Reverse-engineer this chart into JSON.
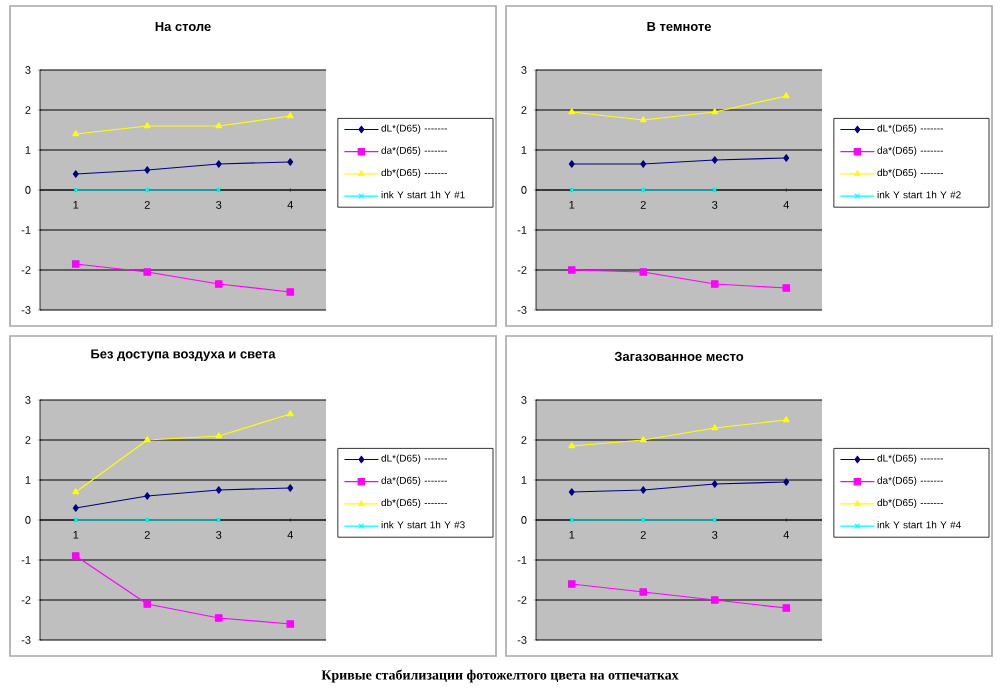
{
  "chart_data": [
    {
      "type": "line",
      "title": "На столе",
      "categories": [
        "1",
        "2",
        "3",
        "4"
      ],
      "ylim": [
        -3,
        3
      ],
      "yticks": [
        -3,
        -2,
        -1,
        0,
        1,
        2,
        3
      ],
      "grid": "y",
      "legend": "right",
      "series": [
        {
          "name": "dL*(D65) -------",
          "color": "#000080",
          "marker": "diamond",
          "values": [
            0.4,
            0.5,
            0.65,
            0.7
          ]
        },
        {
          "name": "da*(D65) -------",
          "color": "#ff00ff",
          "marker": "square",
          "values": [
            -1.85,
            -2.05,
            -2.35,
            -2.55
          ]
        },
        {
          "name": "db*(D65) -------",
          "color": "#ffff00",
          "marker": "triangle",
          "values": [
            1.4,
            1.6,
            1.6,
            1.85
          ]
        },
        {
          "name": "ink Y start 1h Y #1",
          "color": "#00ffff",
          "marker": "cross",
          "values": [
            0,
            0,
            0,
            null
          ]
        }
      ]
    },
    {
      "type": "line",
      "title": "В темноте",
      "categories": [
        "1",
        "2",
        "3",
        "4"
      ],
      "ylim": [
        -3,
        3
      ],
      "yticks": [
        -3,
        -2,
        -1,
        0,
        1,
        2,
        3
      ],
      "grid": "y",
      "legend": "right",
      "series": [
        {
          "name": "dL*(D65) -------",
          "color": "#000080",
          "marker": "diamond",
          "values": [
            0.65,
            0.65,
            0.75,
            0.8
          ]
        },
        {
          "name": "da*(D65) -------",
          "color": "#ff00ff",
          "marker": "square",
          "values": [
            -2.0,
            -2.05,
            -2.35,
            -2.45
          ]
        },
        {
          "name": "db*(D65) -------",
          "color": "#ffff00",
          "marker": "triangle",
          "values": [
            1.95,
            1.75,
            1.95,
            2.35
          ]
        },
        {
          "name": "ink Y start 1h Y #2",
          "color": "#00ffff",
          "marker": "cross",
          "values": [
            0,
            0,
            0,
            null
          ]
        }
      ]
    },
    {
      "type": "line",
      "title": "Без доступа воздуха и света",
      "categories": [
        "1",
        "2",
        "3",
        "4"
      ],
      "ylim": [
        -3,
        3
      ],
      "yticks": [
        -3,
        -2,
        -1,
        0,
        1,
        2,
        3
      ],
      "grid": "y",
      "legend": "right",
      "series": [
        {
          "name": "dL*(D65) -------",
          "color": "#000080",
          "marker": "diamond",
          "values": [
            0.3,
            0.6,
            0.75,
            0.8
          ]
        },
        {
          "name": "da*(D65) -------",
          "color": "#ff00ff",
          "marker": "square",
          "values": [
            -0.9,
            -2.1,
            -2.45,
            -2.6
          ]
        },
        {
          "name": "db*(D65) -------",
          "color": "#ffff00",
          "marker": "triangle",
          "values": [
            0.7,
            2.0,
            2.1,
            2.65
          ]
        },
        {
          "name": "ink Y start 1h Y #3",
          "color": "#00ffff",
          "marker": "cross",
          "values": [
            0,
            0,
            0,
            null
          ]
        }
      ]
    },
    {
      "type": "line",
      "title": "Загазованное место",
      "categories": [
        "1",
        "2",
        "3",
        "4"
      ],
      "ylim": [
        -3,
        3
      ],
      "yticks": [
        -3,
        -2,
        -1,
        0,
        1,
        2,
        3
      ],
      "grid": "y",
      "legend": "right",
      "annotations": [
        "Кривые стабилизации фотожелтого цвета на отпечатках"
      ],
      "series": [
        {
          "name": "dL*(D65) -------",
          "color": "#000080",
          "marker": "diamond",
          "values": [
            0.7,
            0.75,
            0.9,
            0.95
          ]
        },
        {
          "name": "da*(D65) -------",
          "color": "#ff00ff",
          "marker": "square",
          "values": [
            -1.6,
            -1.8,
            -2.0,
            -2.2
          ]
        },
        {
          "name": "db*(D65) -------",
          "color": "#ffff00",
          "marker": "triangle",
          "values": [
            1.85,
            2.0,
            2.3,
            2.5
          ]
        },
        {
          "name": "ink Y start 1h Y #4",
          "color": "#00ffff",
          "marker": "cross",
          "values": [
            0,
            0,
            0,
            null
          ]
        }
      ]
    }
  ]
}
